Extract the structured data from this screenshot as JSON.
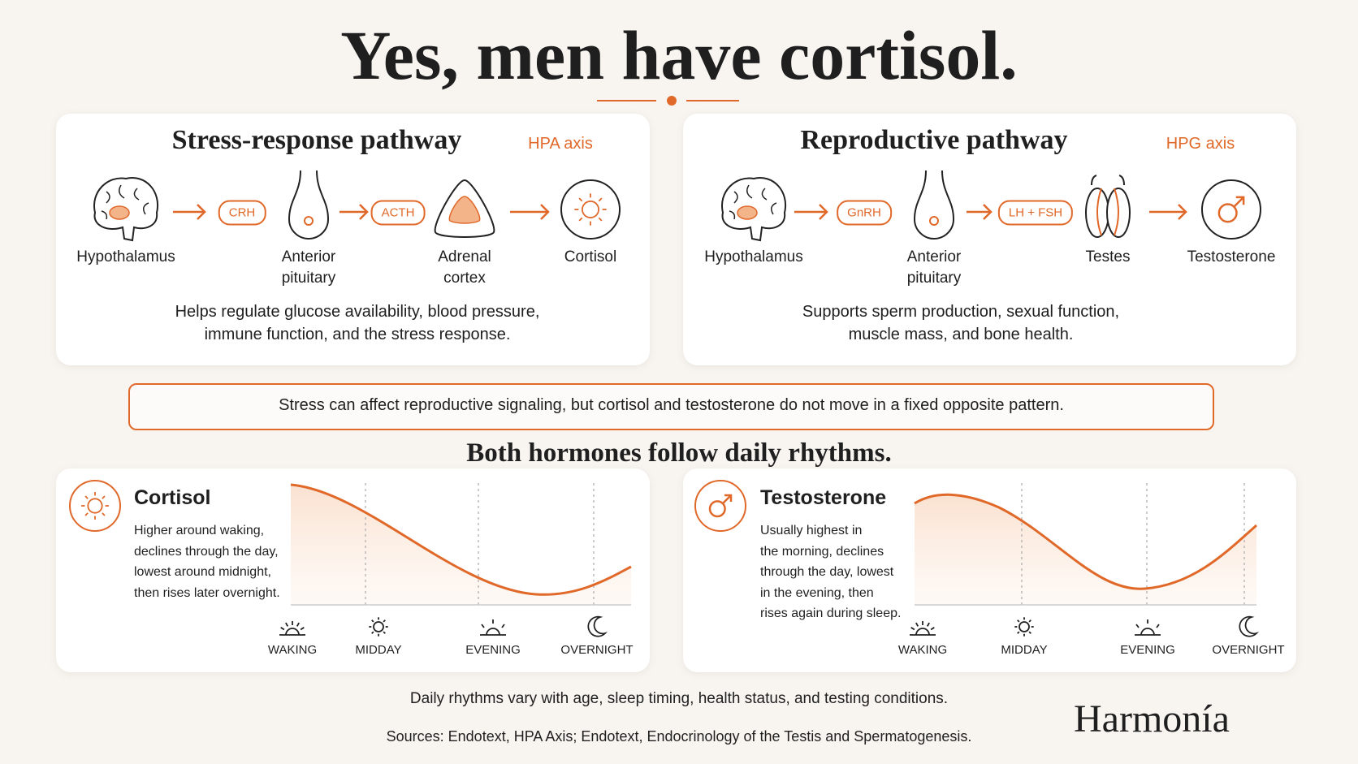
{
  "title": "Yes, men have cortisol.",
  "pathways": [
    {
      "title": "Stress-response pathway",
      "axis": "HPA axis",
      "steps": [
        "Hypothalamus",
        "Anterior pituitary",
        "Adrenal cortex",
        "Cortisol"
      ],
      "signals": [
        "CRH",
        "ACTH"
      ],
      "description": [
        "Helps regulate glucose availability, blood pressure,",
        "immune function, and the stress response."
      ]
    },
    {
      "title": "Reproductive pathway",
      "axis": "HPG axis",
      "steps": [
        "Hypothalamus",
        "Anterior pituitary",
        "Testes",
        "Testosterone"
      ],
      "signals": [
        "GnRH",
        "LH + FSH"
      ],
      "description": [
        "Supports sperm production, sexual function,",
        "muscle mass, and bone health."
      ]
    }
  ],
  "callout": "Stress can affect reproductive signaling, but cortisol and testosterone do not move in a fixed opposite pattern.",
  "subtitle": "Both hormones follow daily rhythms.",
  "rhythms": [
    {
      "hormone": "Cortisol",
      "description": [
        "Higher around waking,",
        "declines through the day,",
        "lowest around midnight,",
        "then rises later overnight."
      ]
    },
    {
      "hormone": "Testosterone",
      "description": [
        "Usually highest in",
        "the morning, declines",
        "through the day, lowest",
        "in the evening, then",
        "rises again during sleep."
      ]
    }
  ],
  "times": [
    "WAKING",
    "MIDDAY",
    "EVENING",
    "OVERNIGHT"
  ],
  "note": "Daily rhythms vary with age, sleep timing, health status, and testing conditions.",
  "sources": "Sources: Endotext, HPA Axis; Endotext, Endocrinology of the Testis and Spermatogenesis.",
  "brand": "Harmonía"
}
